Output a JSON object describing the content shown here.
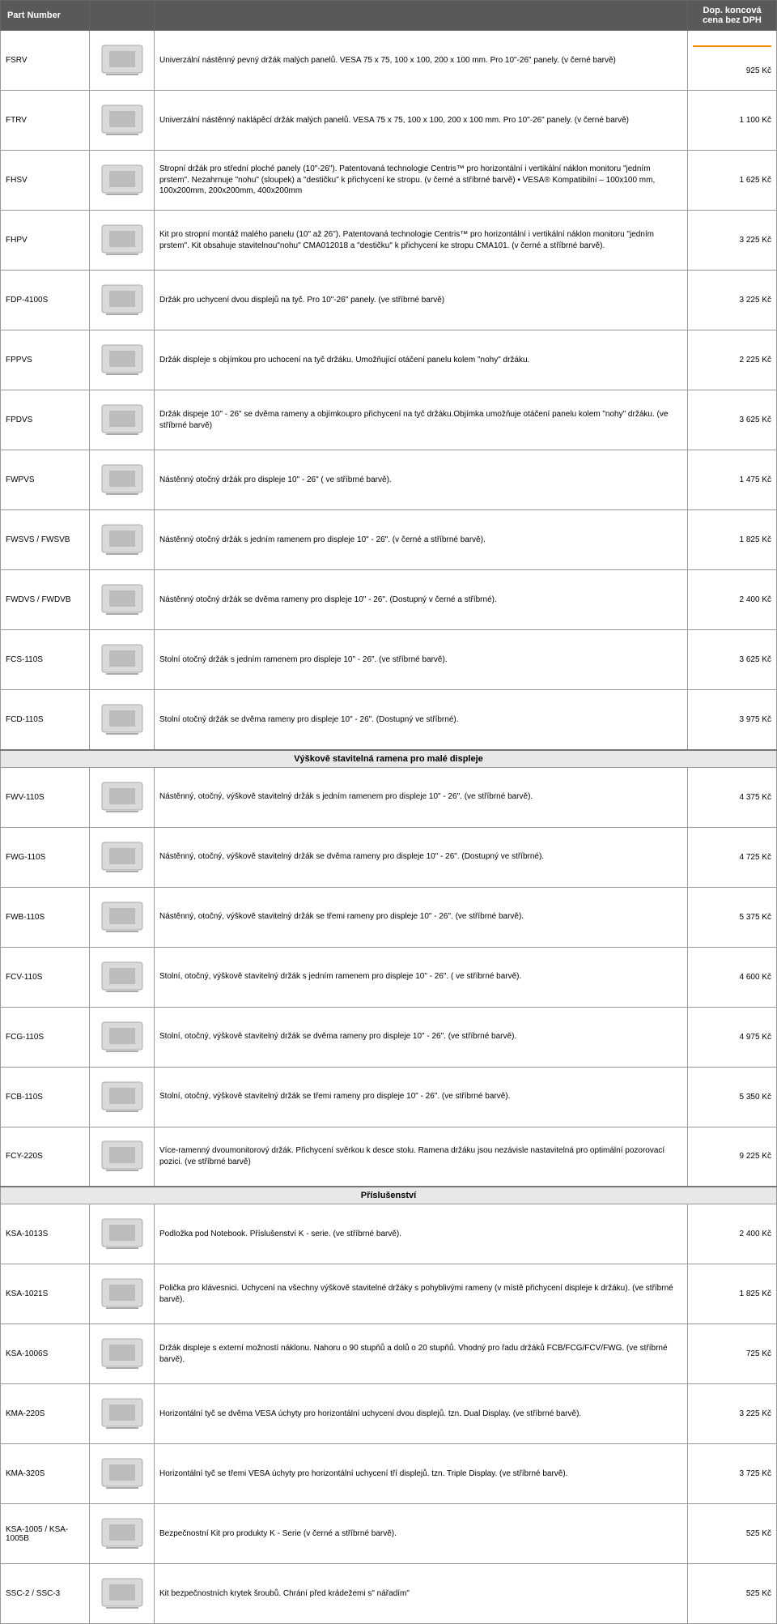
{
  "colors": {
    "header_bg": "#595959",
    "header_text": "#ffffff",
    "border": "#999999",
    "section_bg": "#e8e8e8",
    "accent": "#ff8c00"
  },
  "columns": {
    "part_number": "Part Number",
    "price_header": "Dop. koncová cena bez DPH"
  },
  "sections": [
    {
      "rows": [
        {
          "pn": "FSRV",
          "desc": "Univerzální nástěnný pevný držák malých panelů. VESA 75 x 75, 100 x 100, 200 x 100 mm. Pro 10\"-26\" panely. (v černé barvě)",
          "price": "925 Kč"
        },
        {
          "pn": "FTRV",
          "desc": "Univerzální nástěnný naklápěcí držák malých panelů. VESA 75 x 75, 100 x 100, 200 x 100 mm. Pro 10\"-26\" panely. (v černé barvě)",
          "price": "1 100 Kč"
        },
        {
          "pn": "FHSV",
          "desc": "Stropní držák pro střední ploché panely (10\"-26\"). Patentovaná technologie Centris™ pro horizontální i vertikální náklon monitoru \"jedním prstem\". Nezahrnuje \"nohu\" (sloupek) a \"destičku\" k přichycení ke stropu. (v černé a stříbrné barvě)\n• VESA® Kompatibilní – 100x100 mm, 100x200mm, 200x200mm, 400x200mm",
          "price": "1 625 Kč"
        },
        {
          "pn": "FHPV",
          "desc": "Kit pro stropní montáž malého panelu (10\" až 26\"). Patentovaná technologie Centris™ pro horizontální i vertikální náklon monitoru \"jedním prstem\". Kit obsahuje stavitelnou\"nohu\" CMA012018 a \"destičku\" k přichycení ke stropu CMA101. (v černé a stříbrné barvě).",
          "price": "3 225 Kč"
        },
        {
          "pn": "FDP-4100S",
          "desc": "Držák pro uchycení dvou displejů na tyč. Pro 10\"-26\" panely. (ve stříbrné barvě)",
          "price": "3 225 Kč"
        },
        {
          "pn": "FPPVS",
          "desc": "Držák displeje s objímkou pro uchocení na tyč držáku. Umožňující otáčení panelu kolem \"nohy\" držáku.",
          "price": "2 225 Kč"
        },
        {
          "pn": "FPDVS",
          "desc": "Držák dispeje 10\" - 26\" se dvěma rameny a objímkoupro přichycení na tyč držáku.Objímka umožňuje otáčení panelu  kolem \"nohy\" držáku. (ve stříbrné barvě)",
          "price": "3 625 Kč"
        },
        {
          "pn": "FWPVS",
          "desc": "Nástěnný otočný držák pro displeje 10\" - 26\" ( ve stříbrné barvě).",
          "price": "1 475 Kč"
        },
        {
          "pn": "FWSVS / FWSVB",
          "desc": "Nástěnný otočný držák s jedním ramenem pro displeje 10\" - 26\". (v černé a stříbrné barvě).",
          "price": "1 825 Kč"
        },
        {
          "pn": "FWDVS / FWDVB",
          "desc": "Nástěnný otočný držák se dvěma rameny pro displeje 10\" - 26\". (Dostupný v černé a stříbrné).",
          "price": "2 400 Kč"
        },
        {
          "pn": "FCS-110S",
          "desc": "Stolní otočný držák s jedním ramenem pro displeje 10\" - 26\". (ve stříbrné barvě).",
          "price": "3 625 Kč"
        },
        {
          "pn": "FCD-110S",
          "desc": "Stolní otočný držák se dvěma rameny pro displeje 10\" - 26\". (Dostupný ve stříbrné).",
          "price": "3 975 Kč"
        }
      ]
    },
    {
      "title": "Výškově stavitelná ramena pro malé displeje",
      "rows": [
        {
          "pn": "FWV-110S",
          "desc": "Nástěnný, otočný, výškově stavitelný držák s jedním ramenem pro displeje 10\" - 26\". (ve stříbrné barvě).",
          "price": "4 375 Kč"
        },
        {
          "pn": "FWG-110S",
          "desc": "Nástěnný, otočný, výškově stavitelný držák se dvěma rameny pro displeje 10\" - 26\". (Dostupný ve stříbrné).",
          "price": "4 725 Kč"
        },
        {
          "pn": "FWB-110S",
          "desc": "Nástěnný, otočný, výškově stavitelný držák se třemi  rameny pro displeje 10\" - 26\". (ve stříbrné barvě).",
          "price": "5 375 Kč"
        },
        {
          "pn": "FCV-110S",
          "desc": "Stolní, otočný, výškově stavitelný držák s jedním ramenem pro displeje 10\" - 26\". ( ve stříbrné barvě).",
          "price": "4 600 Kč"
        },
        {
          "pn": "FCG-110S",
          "desc": "Stolní, otočný, výškově stavitelný držák se dvěma rameny pro displeje 10\" - 26\". (ve stříbrné barvě).",
          "price": "4 975 Kč"
        },
        {
          "pn": "FCB-110S",
          "desc": "Stolní, otočný, výškově stavitelný držák se třemi rameny pro displeje 10\" - 26\". (ve stříbrné barvě).",
          "price": "5 350 Kč"
        },
        {
          "pn": "FCY-220S",
          "desc": "Více-ramenný dvoumonitorový držák. Přichycení svěrkou k desce stolu. Ramena držáku jsou nezávisle nastavitelná pro optimální pozorovací pozici. (ve stříbrné barvě)",
          "price": "9 225 Kč"
        }
      ]
    },
    {
      "title": "Příslušenství",
      "rows": [
        {
          "pn": "KSA-1013S",
          "desc": "Podložka pod Notebook. Příslušenství K - serie. (ve stříbrné barvě).",
          "price": "2 400 Kč"
        },
        {
          "pn": "KSA-1021S",
          "desc": "Polička pro klávesnici. Uchycení na všechny výškově stavitelné držáky s pohyblivými rameny (v místě přichycení displeje k držáku). (ve stříbrné barvě).",
          "price": "1 825 Kč"
        },
        {
          "pn": "KSA-1006S",
          "desc": "Držák displeje s externí možností náklonu. Nahoru o 90 stupňů a dolů o 20 stupňů. Vhodný pro řadu držáků FCB/FCG/FCV/FWG. (ve stříbrné barvě).",
          "price": "725 Kč"
        },
        {
          "pn": "KMA-220S",
          "desc": "Horizontální tyč se dvěma VESA úchyty pro horizontální uchycení dvou displejů. tzn. Dual Display. (ve stříbrné barvě).",
          "price": "3 225 Kč"
        },
        {
          "pn": "KMA-320S",
          "desc": "Horizontální tyč se třemi VESA úchyty pro horizontální uchycení tří displejů. tzn. Triple Display. (ve stříbrné barvě).",
          "price": "3 725 Kč"
        },
        {
          "pn": "KSA-1005  / KSA-1005B",
          "desc": "Bezpečnostní Kit pro produkty K - Serie (v černé a stříbrné barvě).",
          "price": "525 Kč"
        },
        {
          "pn": "SSC-2 / SSC-3",
          "desc": "Kit bezpečnostních krytek šroubů. Chrání před krádežemi s\" nářadím\"",
          "price": "525 Kč"
        }
      ]
    }
  ]
}
